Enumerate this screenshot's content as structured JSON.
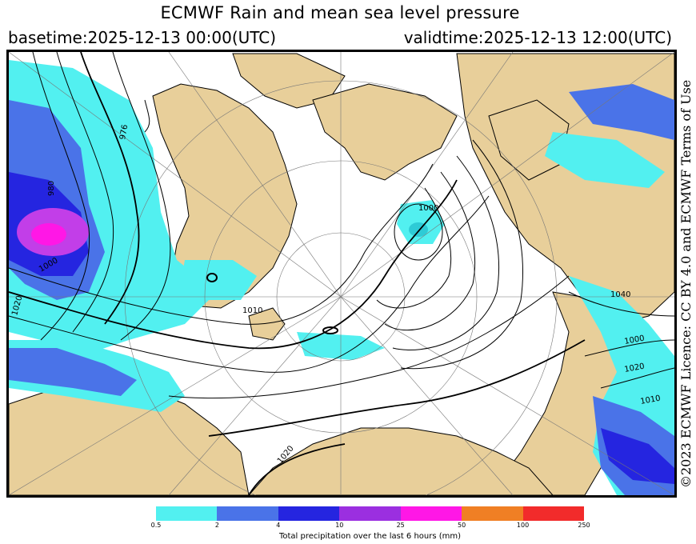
{
  "title": "ECMWF Rain and mean sea level pressure",
  "basetime": "basetime:2025-12-13 00:00(UTC)",
  "validtime": "validtime:2025-12-13 12:00(UTC)",
  "licence": "©2023 ECMWF Licence: CC BY 4.0 and ECMWF Terms of Use",
  "colors": {
    "land": "#e8cf9a",
    "ocean": "#ffffff",
    "precip_light": "#52f0f0",
    "precip_mid": "#4a73e8",
    "precip_heavy": "#2525e0",
    "precip_very_heavy": "#9b2fe0",
    "precip_extreme": "#ff17e6"
  },
  "map": {
    "isobar_labels": [
      "976",
      "980",
      "1000",
      "1000",
      "1010",
      "1020",
      "1040",
      "1000",
      "1020",
      "1010",
      "1020"
    ]
  },
  "legend": {
    "swatches": [
      "#52f0f0",
      "#4a73e8",
      "#2525e0",
      "#9b2fe0",
      "#ff17e6",
      "#f07f24",
      "#f22b2b"
    ],
    "ticks": [
      "0.5",
      "2",
      "4",
      "10",
      "25",
      "50",
      "100",
      "250"
    ],
    "caption": "Total precipitation over the last 6 hours (mm)"
  }
}
